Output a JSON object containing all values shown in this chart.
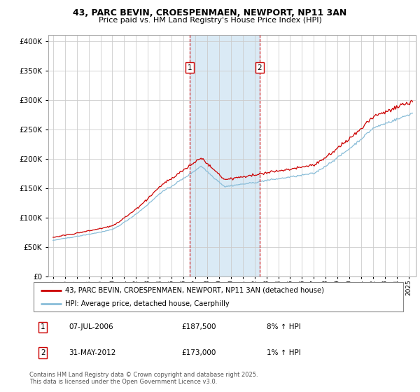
{
  "title_line1": "43, PARC BEVIN, CROESPENMAEN, NEWPORT, NP11 3AN",
  "title_line2": "Price paid vs. HM Land Registry's House Price Index (HPI)",
  "legend_line1": "43, PARC BEVIN, CROESPENMAEN, NEWPORT, NP11 3AN (detached house)",
  "legend_line2": "HPI: Average price, detached house, Caerphilly",
  "sale1_label": "1",
  "sale1_date": "07-JUL-2006",
  "sale1_price": "£187,500",
  "sale1_hpi": "8% ↑ HPI",
  "sale2_label": "2",
  "sale2_date": "31-MAY-2012",
  "sale2_price": "£173,000",
  "sale2_hpi": "1% ↑ HPI",
  "footer": "Contains HM Land Registry data © Crown copyright and database right 2025.\nThis data is licensed under the Open Government Licence v3.0.",
  "sale1_year": 2006.52,
  "sale2_year": 2012.42,
  "hpi_color": "#89bdd8",
  "price_color": "#cc0000",
  "shade_color": "#daeaf5",
  "grid_color": "#cccccc",
  "bg_color": "#ffffff",
  "ymax": 400000,
  "ymin": 0
}
